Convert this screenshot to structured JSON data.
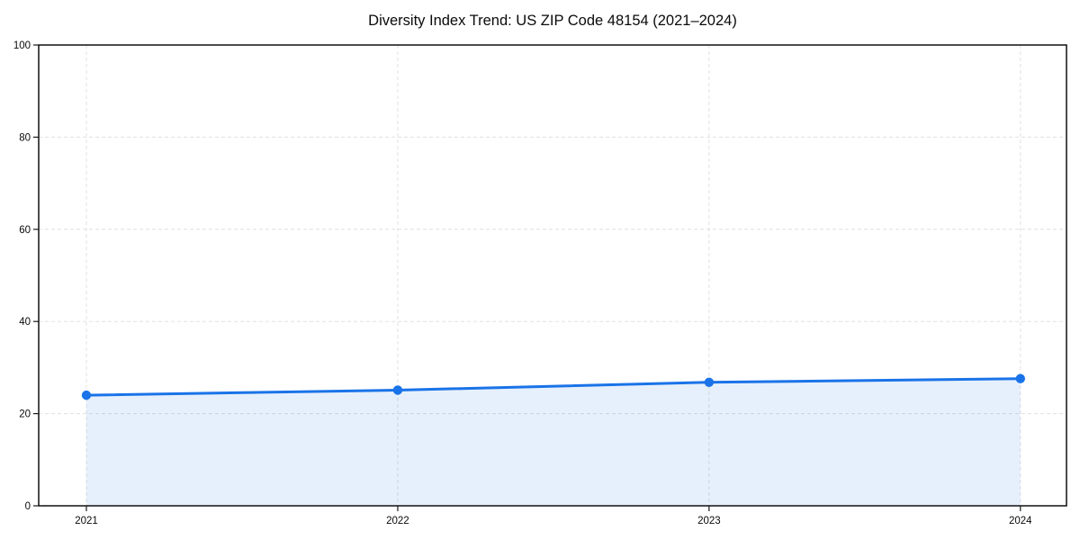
{
  "page": {
    "background": "#ffffff"
  },
  "chart_data": {
    "type": "area",
    "title": "Diversity Index Trend: US ZIP Code 48154 (2021–2024)",
    "x": [
      "2021",
      "2022",
      "2023",
      "2024"
    ],
    "values": [
      24.0,
      25.1,
      26.8,
      27.6
    ],
    "series_name": "Diversity Index",
    "xlabel": "",
    "ylabel": "",
    "ylim": [
      0,
      100
    ],
    "yticks": [
      0,
      20,
      40,
      60,
      80,
      100
    ],
    "grid": "dashed, horizontal and vertical",
    "legend": "none",
    "colors": {
      "line": "#1a73e8",
      "marker": "#1a73e8",
      "fill": "rgba(26,115,232,0.11)",
      "gridline": "#e0e0e0",
      "frame": "#000000",
      "text": "#0a0a0a"
    }
  }
}
